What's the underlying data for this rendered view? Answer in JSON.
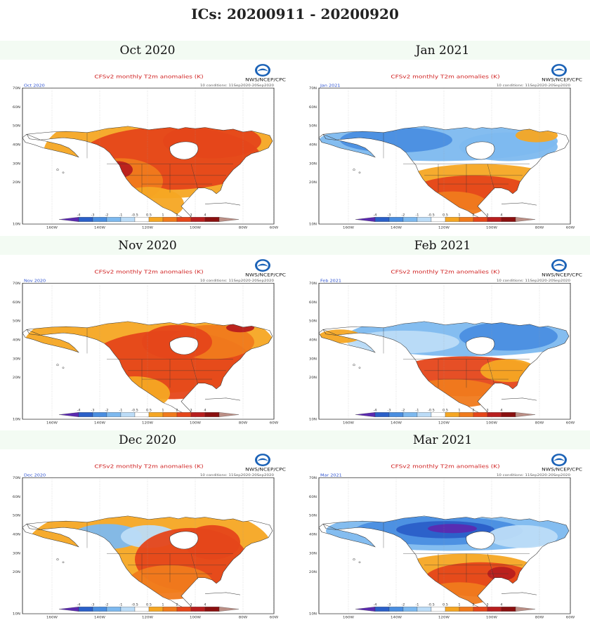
{
  "title": "ICs: 20200911 - 20200920",
  "panel_header": "CFSv2 monthly T2m anomalies (K)",
  "agency": "NWS/NCEP/CPC",
  "ic_text": "10 conditions: 11Sep2020-20Sep2020",
  "colorbar": {
    "labels": [
      "-4",
      "-3",
      "-2",
      "-1",
      "-0.5",
      "0.5",
      "1",
      "2",
      "3",
      "4"
    ],
    "colors": [
      "#5b2ab0",
      "#2a5fc8",
      "#4a8ee0",
      "#7db9ef",
      "#bcdcf7",
      "#ffffff",
      "#f5a623",
      "#f07a1c",
      "#e5461a",
      "#b81e1e",
      "#8a0f0f",
      "#bb8f86"
    ]
  },
  "lat_labels": [
    "70N",
    "60N",
    "50N",
    "40N",
    "30N",
    "20N",
    "10N"
  ],
  "lon_labels": [
    "160W",
    "140W",
    "120W",
    "100W",
    "80W",
    "60W"
  ],
  "panels": [
    {
      "month": "Oct 2020",
      "code": "Oct 2020",
      "anomaly": "warm"
    },
    {
      "month": "Jan 2021",
      "code": "Jan 2021",
      "anomaly": "cold-north-warm-south"
    },
    {
      "month": "Nov 2020",
      "code": "Nov 2020",
      "anomaly": "warm"
    },
    {
      "month": "Feb 2021",
      "code": "Feb 2021",
      "anomaly": "cold-north-warm-south"
    },
    {
      "month": "Dec 2020",
      "code": "Dec 2020",
      "anomaly": "mixed"
    },
    {
      "month": "Mar 2021",
      "code": "Mar 2021",
      "anomaly": "cold-north-warm-south"
    }
  ]
}
